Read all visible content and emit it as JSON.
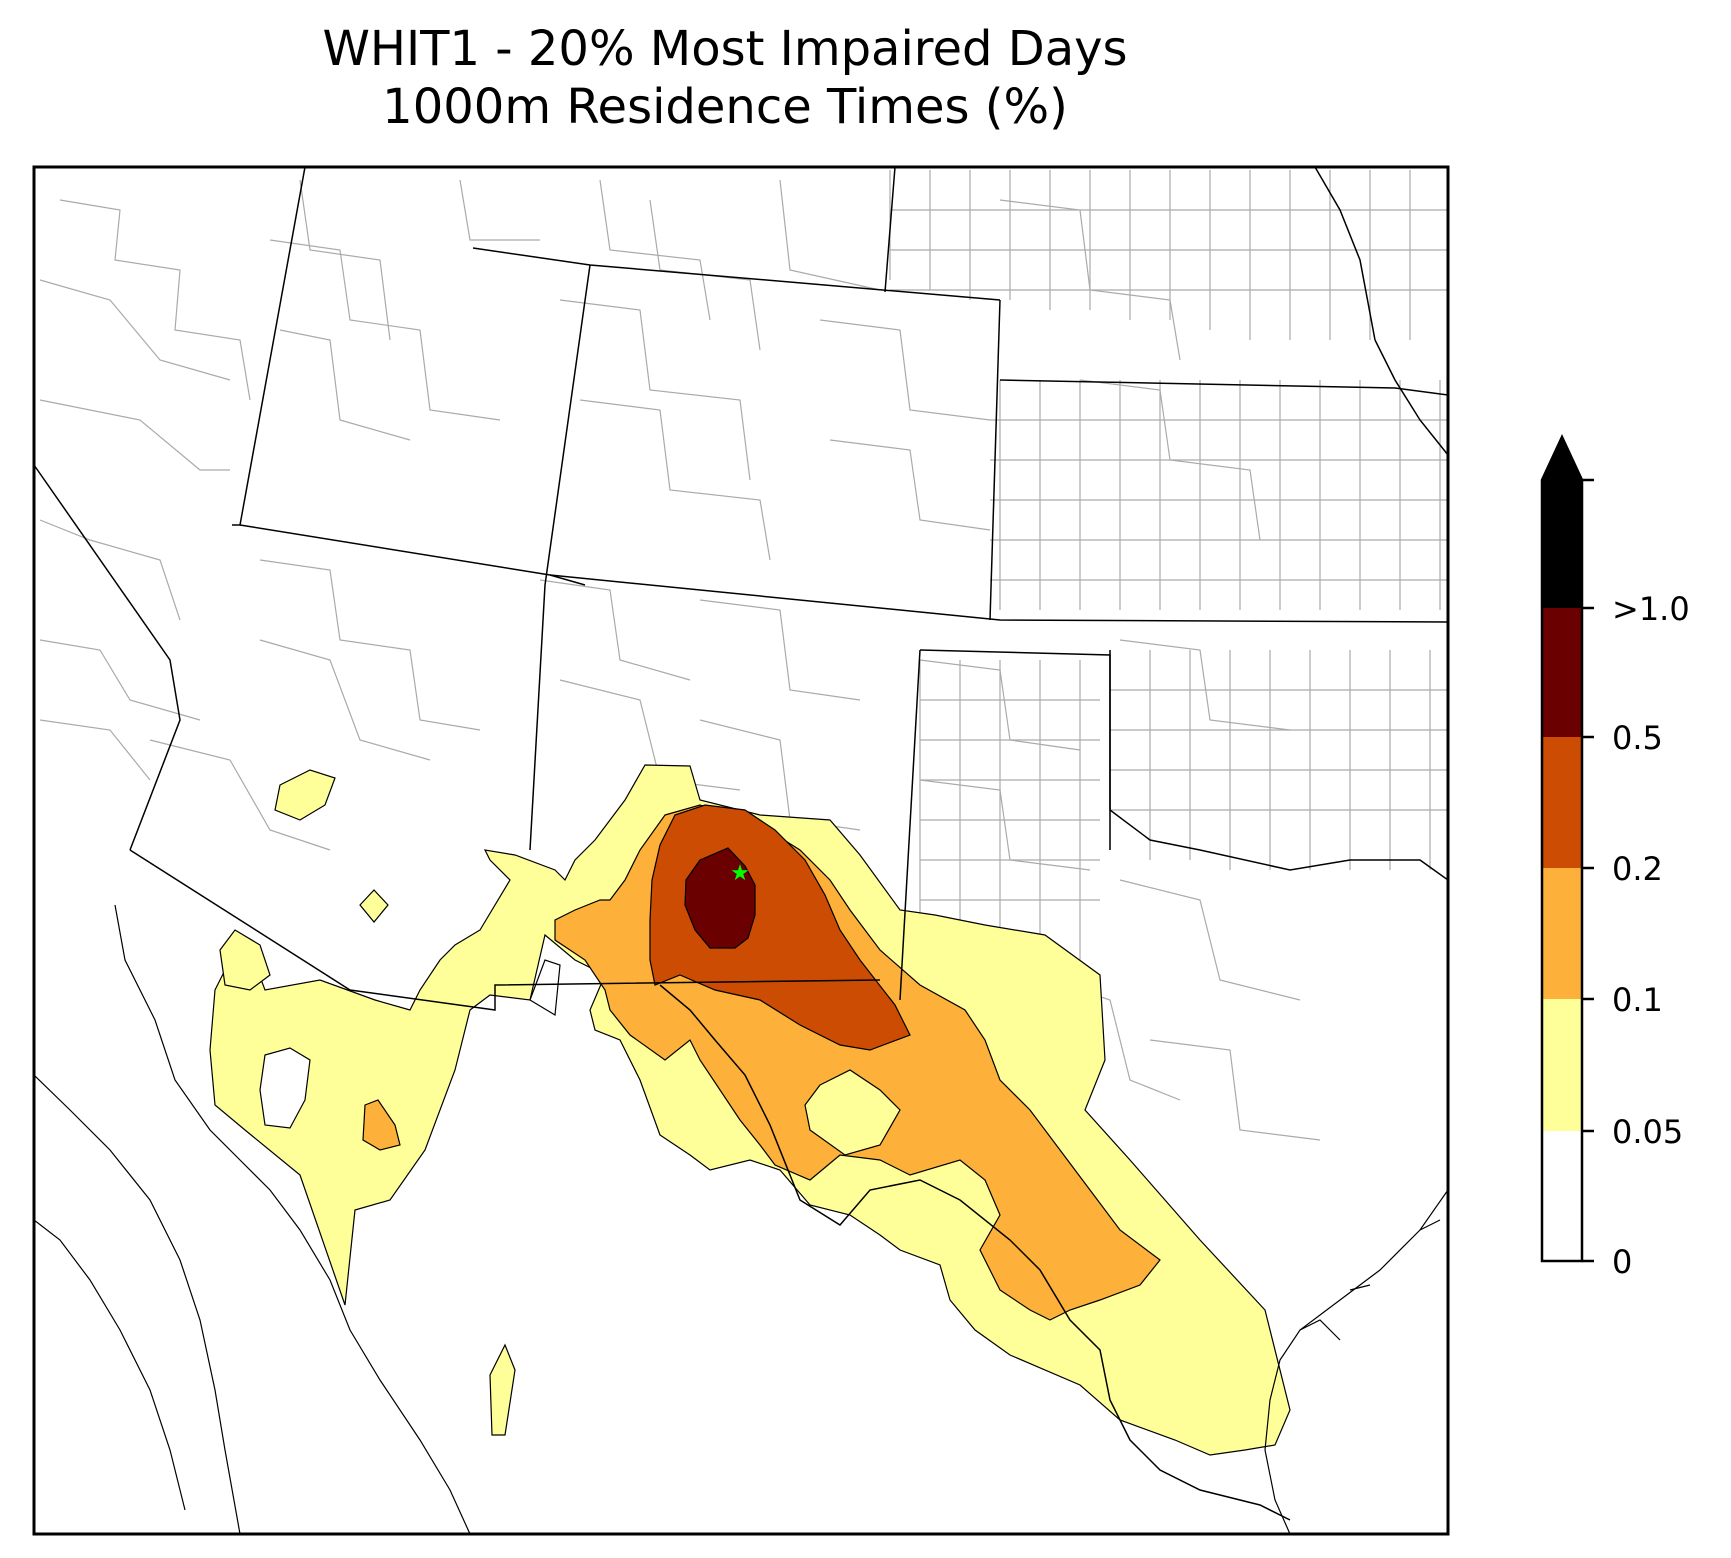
{
  "title": {
    "line1": "WHIT1 - 20% Most Impaired Days",
    "line2": "1000m Residence Times (%)"
  },
  "map": {
    "type": "contour-map",
    "region": "Southwestern United States and northern Mexico",
    "receptor_marker": "star",
    "receptor_color": "#00ff00"
  },
  "colorbar": {
    "extend": "max",
    "levels": [
      {
        "label": "0",
        "color": "#ffffff"
      },
      {
        "label": "0.05",
        "color": "#ffff99"
      },
      {
        "label": "0.1",
        "color": "#fdb03a"
      },
      {
        "label": "0.2",
        "color": "#cb4c02"
      },
      {
        "label": "0.5",
        "color": "#6b0000"
      },
      {
        "label": ">1.0",
        "color": "#000000"
      }
    ],
    "tick_labels": [
      "0",
      "0.05",
      "0.1",
      "0.2",
      "0.5",
      ">1.0"
    ]
  }
}
